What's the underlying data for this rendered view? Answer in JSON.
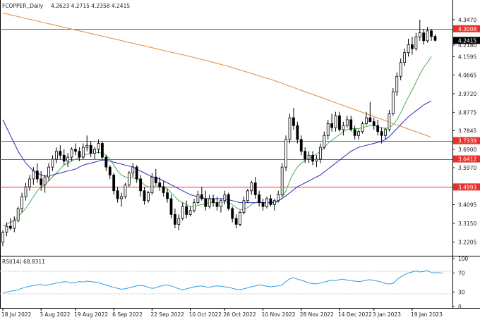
{
  "header": {
    "symbol": "FCOPPER,,Daily",
    "ohlc": "4.2623 4.2715 4.2358 4.2415"
  },
  "rsi_label": "RSI(14) 68.8311",
  "colors": {
    "bull": "#ffffff",
    "bear": "#000000",
    "wick": "#000000",
    "level": "#e8302a",
    "ma_fast": "#4caf50",
    "ma_mid": "#2a2ab8",
    "ma_slow": "#e08a3c",
    "rsi": "#2f9be0",
    "price_badge": "#000000",
    "level_badge": "#e8302a"
  },
  "chart_data": [
    {
      "type": "candlestick",
      "title": "FCOPPER,,Daily",
      "x_tick_labels": [
        "18 Jul 2022",
        "3 Aug 2022",
        "19 Aug 2022",
        "6 Sep 2022",
        "22 Sep 2022",
        "10 Oct 2022",
        "26 Oct 2022",
        "10 Nov 2022",
        "28 Nov 2022",
        "14 Dec 2022",
        "3 Jan 2023",
        "19 Jan 2023"
      ],
      "y_tick_labels": [
        "4.3470",
        "4.2180",
        "4.1595",
        "4.0665",
        "3.9720",
        "3.8775",
        "3.7845",
        "3.6900",
        "3.5970",
        "3.4095",
        "3.3150",
        "3.2205"
      ],
      "ylim": [
        3.19,
        4.375
      ],
      "grid": false,
      "current_price": "4.2415",
      "horizontal_levels": [
        "4.3008",
        "3.7339",
        "3.6412",
        "3.4993"
      ],
      "candles": [
        [
          3.22,
          3.28,
          3.2,
          3.27
        ],
        [
          3.27,
          3.32,
          3.25,
          3.3
        ],
        [
          3.3,
          3.34,
          3.28,
          3.29
        ],
        [
          3.29,
          3.35,
          3.27,
          3.33
        ],
        [
          3.33,
          3.4,
          3.32,
          3.39
        ],
        [
          3.39,
          3.47,
          3.37,
          3.45
        ],
        [
          3.45,
          3.52,
          3.43,
          3.5
        ],
        [
          3.5,
          3.56,
          3.48,
          3.54
        ],
        [
          3.54,
          3.6,
          3.51,
          3.58
        ],
        [
          3.58,
          3.62,
          3.52,
          3.54
        ],
        [
          3.54,
          3.58,
          3.48,
          3.51
        ],
        [
          3.51,
          3.56,
          3.47,
          3.55
        ],
        [
          3.55,
          3.62,
          3.53,
          3.6
        ],
        [
          3.6,
          3.66,
          3.58,
          3.64
        ],
        [
          3.64,
          3.7,
          3.62,
          3.68
        ],
        [
          3.68,
          3.71,
          3.64,
          3.66
        ],
        [
          3.66,
          3.69,
          3.61,
          3.63
        ],
        [
          3.63,
          3.67,
          3.6,
          3.65
        ],
        [
          3.65,
          3.7,
          3.63,
          3.69
        ],
        [
          3.69,
          3.72,
          3.66,
          3.68
        ],
        [
          3.68,
          3.7,
          3.63,
          3.65
        ],
        [
          3.65,
          3.72,
          3.64,
          3.7
        ],
        [
          3.7,
          3.76,
          3.68,
          3.71
        ],
        [
          3.71,
          3.73,
          3.65,
          3.67
        ],
        [
          3.67,
          3.7,
          3.64,
          3.69
        ],
        [
          3.69,
          3.74,
          3.67,
          3.72
        ],
        [
          3.72,
          3.73,
          3.64,
          3.65
        ],
        [
          3.65,
          3.66,
          3.58,
          3.6
        ],
        [
          3.6,
          3.61,
          3.54,
          3.56
        ],
        [
          3.56,
          3.57,
          3.46,
          3.48
        ],
        [
          3.48,
          3.5,
          3.42,
          3.44
        ],
        [
          3.44,
          3.47,
          3.4,
          3.45
        ],
        [
          3.45,
          3.52,
          3.44,
          3.51
        ],
        [
          3.51,
          3.58,
          3.5,
          3.57
        ],
        [
          3.57,
          3.62,
          3.55,
          3.6
        ],
        [
          3.6,
          3.61,
          3.52,
          3.54
        ],
        [
          3.54,
          3.56,
          3.45,
          3.48
        ],
        [
          3.48,
          3.5,
          3.41,
          3.43
        ],
        [
          3.43,
          3.48,
          3.42,
          3.47
        ],
        [
          3.47,
          3.57,
          3.46,
          3.55
        ],
        [
          3.55,
          3.59,
          3.51,
          3.52
        ],
        [
          3.52,
          3.55,
          3.48,
          3.5
        ],
        [
          3.5,
          3.53,
          3.45,
          3.47
        ],
        [
          3.47,
          3.49,
          3.42,
          3.44
        ],
        [
          3.44,
          3.46,
          3.34,
          3.36
        ],
        [
          3.36,
          3.39,
          3.29,
          3.31
        ],
        [
          3.31,
          3.36,
          3.28,
          3.34
        ],
        [
          3.34,
          3.42,
          3.33,
          3.4
        ],
        [
          3.4,
          3.43,
          3.34,
          3.36
        ],
        [
          3.36,
          3.4,
          3.35,
          3.38
        ],
        [
          3.38,
          3.44,
          3.37,
          3.42
        ],
        [
          3.42,
          3.48,
          3.41,
          3.46
        ],
        [
          3.46,
          3.5,
          3.43,
          3.44
        ],
        [
          3.44,
          3.48,
          3.38,
          3.4
        ],
        [
          3.4,
          3.46,
          3.39,
          3.44
        ],
        [
          3.44,
          3.46,
          3.4,
          3.42
        ],
        [
          3.42,
          3.45,
          3.38,
          3.4
        ],
        [
          3.4,
          3.44,
          3.37,
          3.43
        ],
        [
          3.43,
          3.48,
          3.41,
          3.46
        ],
        [
          3.46,
          3.47,
          3.38,
          3.39
        ],
        [
          3.39,
          3.4,
          3.32,
          3.34
        ],
        [
          3.34,
          3.36,
          3.29,
          3.31
        ],
        [
          3.31,
          3.38,
          3.3,
          3.37
        ],
        [
          3.37,
          3.45,
          3.36,
          3.43
        ],
        [
          3.43,
          3.49,
          3.42,
          3.48
        ],
        [
          3.48,
          3.53,
          3.46,
          3.52
        ],
        [
          3.52,
          3.55,
          3.44,
          3.46
        ],
        [
          3.46,
          3.48,
          3.4,
          3.42
        ],
        [
          3.42,
          3.44,
          3.38,
          3.4
        ],
        [
          3.4,
          3.45,
          3.39,
          3.44
        ],
        [
          3.44,
          3.46,
          3.4,
          3.41
        ],
        [
          3.41,
          3.44,
          3.38,
          3.43
        ],
        [
          3.43,
          3.48,
          3.42,
          3.46
        ],
        [
          3.46,
          3.62,
          3.45,
          3.6
        ],
        [
          3.6,
          3.76,
          3.58,
          3.74
        ],
        [
          3.74,
          3.87,
          3.72,
          3.85
        ],
        [
          3.85,
          3.9,
          3.79,
          3.81
        ],
        [
          3.81,
          3.83,
          3.72,
          3.74
        ],
        [
          3.74,
          3.76,
          3.66,
          3.68
        ],
        [
          3.68,
          3.7,
          3.62,
          3.64
        ],
        [
          3.64,
          3.68,
          3.62,
          3.66
        ],
        [
          3.66,
          3.68,
          3.61,
          3.63
        ],
        [
          3.63,
          3.66,
          3.6,
          3.64
        ],
        [
          3.64,
          3.72,
          3.62,
          3.7
        ],
        [
          3.7,
          3.78,
          3.69,
          3.76
        ],
        [
          3.76,
          3.84,
          3.74,
          3.82
        ],
        [
          3.82,
          3.87,
          3.78,
          3.8
        ],
        [
          3.8,
          3.88,
          3.78,
          3.86
        ],
        [
          3.86,
          3.88,
          3.78,
          3.79
        ],
        [
          3.79,
          3.83,
          3.76,
          3.81
        ],
        [
          3.81,
          3.86,
          3.8,
          3.84
        ],
        [
          3.84,
          3.86,
          3.78,
          3.79
        ],
        [
          3.79,
          3.81,
          3.74,
          3.76
        ],
        [
          3.76,
          3.79,
          3.74,
          3.78
        ],
        [
          3.78,
          3.83,
          3.77,
          3.82
        ],
        [
          3.82,
          3.88,
          3.81,
          3.85
        ],
        [
          3.85,
          3.93,
          3.84,
          3.83
        ],
        [
          3.83,
          3.85,
          3.79,
          3.81
        ],
        [
          3.81,
          3.84,
          3.76,
          3.78
        ],
        [
          3.78,
          3.8,
          3.72,
          3.76
        ],
        [
          3.76,
          3.8,
          3.74,
          3.79
        ],
        [
          3.79,
          3.89,
          3.78,
          3.87
        ],
        [
          3.87,
          4.0,
          3.86,
          3.98
        ],
        [
          3.98,
          4.08,
          3.96,
          4.06
        ],
        [
          4.06,
          4.15,
          4.04,
          4.13
        ],
        [
          4.13,
          4.2,
          4.11,
          4.18
        ],
        [
          4.18,
          4.25,
          4.16,
          4.22
        ],
        [
          4.22,
          4.26,
          4.17,
          4.2
        ],
        [
          4.2,
          4.28,
          4.19,
          4.26
        ],
        [
          4.26,
          4.347,
          4.24,
          4.28
        ],
        [
          4.28,
          4.3,
          4.22,
          4.24
        ],
        [
          4.24,
          4.31,
          4.23,
          4.29
        ],
        [
          4.29,
          4.3,
          4.24,
          4.262
        ],
        [
          4.262,
          4.272,
          4.236,
          4.242
        ]
      ],
      "series": [
        {
          "values": [
            3.3,
            3.31,
            3.32,
            3.33,
            3.35,
            3.37,
            3.39,
            3.42,
            3.45,
            3.48,
            3.5,
            3.51,
            3.53,
            3.55,
            3.57,
            3.59,
            3.61,
            3.62,
            3.63,
            3.64,
            3.65,
            3.66,
            3.665,
            3.67,
            3.67,
            3.675,
            3.67,
            3.66,
            3.64,
            3.61,
            3.58,
            3.56,
            3.55,
            3.545,
            3.545,
            3.54,
            3.53,
            3.51,
            3.5,
            3.5,
            3.505,
            3.505,
            3.5,
            3.49,
            3.47,
            3.45,
            3.43,
            3.42,
            3.41,
            3.4,
            3.4,
            3.405,
            3.41,
            3.415,
            3.42,
            3.42,
            3.42,
            3.42,
            3.425,
            3.42,
            3.41,
            3.395,
            3.385,
            3.385,
            3.395,
            3.41,
            3.42,
            3.425,
            3.42,
            3.42,
            3.42,
            3.42,
            3.425,
            3.445,
            3.48,
            3.53,
            3.57,
            3.6,
            3.62,
            3.635,
            3.645,
            3.655,
            3.665,
            3.68,
            3.7,
            3.72,
            3.735,
            3.75,
            3.765,
            3.78,
            3.79,
            3.795,
            3.795,
            3.795,
            3.8,
            3.805,
            3.81,
            3.81,
            3.805,
            3.8,
            3.795,
            3.8,
            3.815,
            3.84,
            3.875,
            3.915,
            3.955,
            3.99,
            4.03,
            4.07,
            4.105,
            4.13,
            4.16
          ]
        },
        {
          "values": [
            3.84,
            3.8,
            3.76,
            3.72,
            3.68,
            3.65,
            3.62,
            3.6,
            3.58,
            3.57,
            3.56,
            3.555,
            3.555,
            3.56,
            3.565,
            3.57,
            3.575,
            3.58,
            3.585,
            3.59,
            3.6,
            3.61,
            3.615,
            3.62,
            3.625,
            3.63,
            3.635,
            3.635,
            3.63,
            3.625,
            3.62,
            3.615,
            3.61,
            3.605,
            3.6,
            3.59,
            3.58,
            3.57,
            3.56,
            3.55,
            3.545,
            3.54,
            3.53,
            3.52,
            3.51,
            3.5,
            3.49,
            3.48,
            3.47,
            3.46,
            3.455,
            3.45,
            3.445,
            3.44,
            3.44,
            3.44,
            3.44,
            3.44,
            3.44,
            3.435,
            3.43,
            3.425,
            3.42,
            3.42,
            3.42,
            3.42,
            3.42,
            3.42,
            3.42,
            3.42,
            3.42,
            3.425,
            3.43,
            3.44,
            3.455,
            3.47,
            3.485,
            3.5,
            3.51,
            3.52,
            3.53,
            3.54,
            3.55,
            3.56,
            3.575,
            3.59,
            3.605,
            3.62,
            3.635,
            3.65,
            3.665,
            3.68,
            3.69,
            3.7,
            3.705,
            3.71,
            3.715,
            3.72,
            3.725,
            3.73,
            3.74,
            3.755,
            3.775,
            3.795,
            3.815,
            3.835,
            3.855,
            3.87,
            3.885,
            3.9,
            3.915,
            3.925,
            3.935
          ]
        },
        {
          "values": [
            4.38,
            4.376,
            4.371,
            4.367,
            4.362,
            4.358,
            4.353,
            4.349,
            4.344,
            4.34,
            4.335,
            4.331,
            4.326,
            4.322,
            4.317,
            4.313,
            4.308,
            4.304,
            4.299,
            4.295,
            4.29,
            4.286,
            4.281,
            4.277,
            4.272,
            4.268,
            4.263,
            4.259,
            4.254,
            4.25,
            4.245,
            4.241,
            4.236,
            4.232,
            4.227,
            4.223,
            4.218,
            4.214,
            4.209,
            4.205,
            4.2,
            4.196,
            4.191,
            4.187,
            4.182,
            4.178,
            4.173,
            4.169,
            4.164,
            4.16,
            4.155,
            4.15,
            4.145,
            4.14,
            4.135,
            4.13,
            4.125,
            4.12,
            4.115,
            4.11,
            4.104,
            4.098,
            4.092,
            4.086,
            4.08,
            4.074,
            4.068,
            4.062,
            4.056,
            4.05,
            4.044,
            4.038,
            4.031,
            4.024,
            4.017,
            4.01,
            4.003,
            3.996,
            3.989,
            3.982,
            3.975,
            3.968,
            3.961,
            3.954,
            3.947,
            3.94,
            3.933,
            3.926,
            3.919,
            3.912,
            3.905,
            3.898,
            3.891,
            3.884,
            3.877,
            3.87,
            3.863,
            3.856,
            3.849,
            3.842,
            3.835,
            3.828,
            3.821,
            3.814,
            3.807,
            3.8,
            3.793,
            3.786,
            3.779,
            3.772,
            3.765,
            3.758,
            3.751
          ]
        }
      ]
    },
    {
      "type": "line",
      "title": "RSI(14) 68.8311",
      "y_tick_labels": [
        "100",
        "70",
        "30",
        "0"
      ],
      "ylim": [
        0,
        100
      ],
      "guides": [
        70,
        30
      ],
      "series": [
        {
          "values": [
            28,
            30,
            32,
            33,
            35,
            38,
            40,
            42,
            44,
            45,
            46,
            44,
            45,
            47,
            49,
            50,
            52,
            51,
            49,
            50,
            52,
            51,
            53,
            52,
            51,
            50,
            47,
            45,
            42,
            40,
            38,
            36,
            37,
            39,
            41,
            43,
            44,
            43,
            40,
            38,
            39,
            42,
            44,
            45,
            43,
            40,
            37,
            35,
            37,
            39,
            41,
            42,
            43,
            41,
            40,
            42,
            43,
            42,
            41,
            40,
            38,
            36,
            35,
            37,
            39,
            41,
            43,
            45,
            44,
            42,
            41,
            42,
            43,
            45,
            52,
            58,
            60,
            57,
            55,
            52,
            49,
            48,
            47,
            49,
            51,
            53,
            55,
            54,
            56,
            57,
            55,
            54,
            53,
            52,
            53,
            55,
            56,
            54,
            53,
            51,
            48,
            47,
            48,
            56,
            62,
            66,
            70,
            72,
            74,
            72,
            73,
            75,
            71,
            70,
            71,
            69
          ]
        }
      ]
    }
  ]
}
